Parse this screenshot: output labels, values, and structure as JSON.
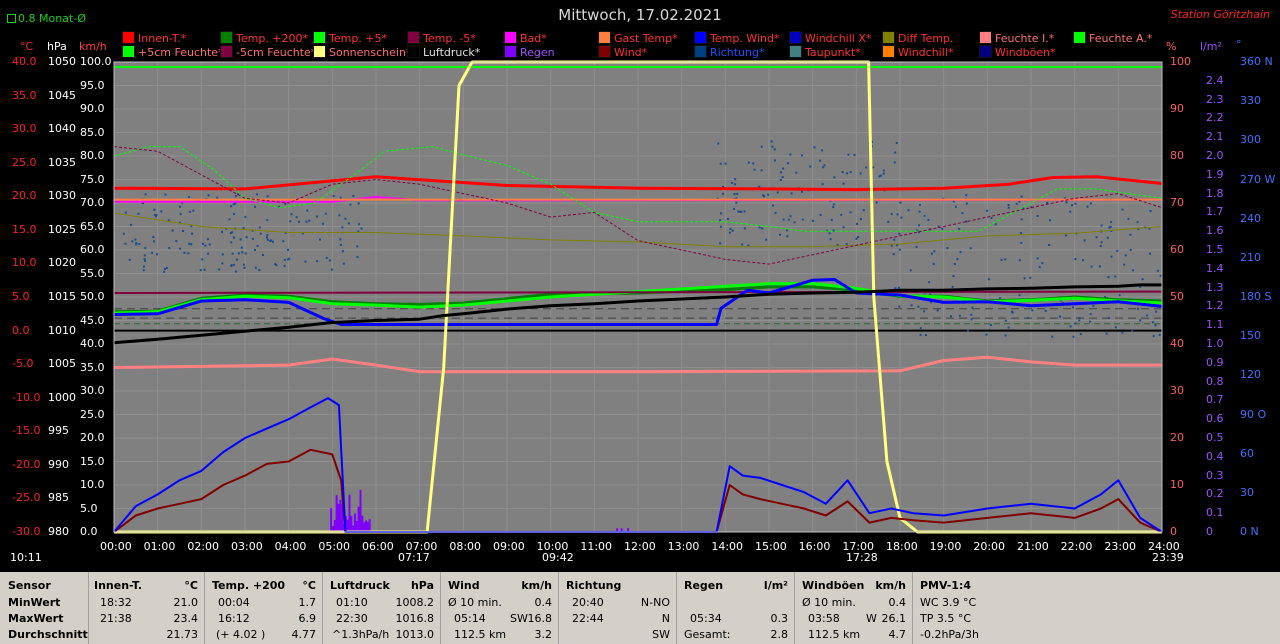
{
  "header": {
    "title": "Mittwoch, 17.02.2021",
    "station": "Station Göritzhain",
    "monat": "0.8 Monat-Ø",
    "clock": "10:11"
  },
  "legend": [
    {
      "label": "Innen-T.*",
      "color": "#ff0000",
      "text_color": "#ff3030"
    },
    {
      "label": "Temp. +200*",
      "color": "#008000",
      "text_color": "#ff3030"
    },
    {
      "label": "Temp. +5*",
      "color": "#00ff00",
      "text_color": "#ff3030"
    },
    {
      "label": "Temp. -5*",
      "color": "#800040",
      "text_color": "#ff3030"
    },
    {
      "label": "Bad*",
      "color": "#ff00ff",
      "text_color": "#ff3030"
    },
    {
      "label": "Gast Temp*",
      "color": "#ff8040",
      "text_color": "#ff3030"
    },
    {
      "label": "Temp. Wind*",
      "color": "#0000ff",
      "text_color": "#ff3030"
    },
    {
      "label": "Windchill X*",
      "color": "#0000c0",
      "text_color": "#ff3030"
    },
    {
      "label": "Diff Temp.",
      "color": "#808000",
      "text_color": "#ff3030"
    },
    {
      "label": "Feuchte I.*",
      "color": "#ff8080",
      "text_color": "#ff7070"
    },
    {
      "label": "Feuchte A.*",
      "color": "#00ff00",
      "text_color": "#ff7070"
    },
    {
      "label": "+5cm Feuchte*",
      "color": "#00ff00",
      "text_color": "#ff7070"
    },
    {
      "label": "-5cm Feuchte*",
      "color": "#800040",
      "text_color": "#ff7070"
    },
    {
      "label": "Sonnenschein*",
      "color": "#ffff80",
      "text_color": "#ff7070"
    },
    {
      "label": "Luftdruck*",
      "color": "#000000",
      "text_color": "#e0e0e0"
    },
    {
      "label": "Regen",
      "color": "#8000ff",
      "text_color": "#a050ff"
    },
    {
      "label": "Wind*",
      "color": "#800000",
      "text_color": "#ff3030"
    },
    {
      "label": "Richtung*",
      "color": "#004080",
      "text_color": "#2050ff"
    },
    {
      "label": "Taupunkt*",
      "color": "#408080",
      "text_color": "#ff3030"
    },
    {
      "label": "Windchill*",
      "color": "#ff8000",
      "text_color": "#ff3030"
    },
    {
      "label": "Windböen*",
      "color": "#000080",
      "text_color": "#ff3030"
    }
  ],
  "chart_data": {
    "type": "line",
    "x_ticks": [
      "00:00",
      "01:00",
      "02:00",
      "03:00",
      "04:00",
      "05:00",
      "06:00",
      "07:00",
      "08:00",
      "09:00",
      "10:00",
      "11:00",
      "12:00",
      "13:00",
      "14:00",
      "15:00",
      "16:00",
      "17:00",
      "18:00",
      "19:00",
      "20:00",
      "21:00",
      "22:00",
      "23:00",
      "24:00"
    ],
    "axes": {
      "temp": {
        "unit": "°C",
        "ticks": [
          "40.0",
          "35.0",
          "30.0",
          "25.0",
          "20.0",
          "15.0",
          "10.0",
          "5.0",
          "0.0",
          "-5.0",
          "-10.0",
          "-15.0",
          "-20.0",
          "-25.0",
          "-30.0"
        ],
        "ylim": [
          -30,
          40
        ]
      },
      "pressure": {
        "unit": "hPa",
        "ticks": [
          "1050",
          "1045",
          "1040",
          "1035",
          "1030",
          "1025",
          "1020",
          "1015",
          "1010",
          "1005",
          "1000",
          "995",
          "990",
          "985",
          "980"
        ],
        "ylim": [
          980,
          1050
        ]
      },
      "wind": {
        "unit": "km/h",
        "ticks": [
          "100.0",
          "95.0",
          "90.0",
          "85.0",
          "80.0",
          "75.0",
          "70.0",
          "65.0",
          "60.0",
          "55.0",
          "50.0",
          "45.0",
          "40.0",
          "35.0",
          "30.0",
          "25.0",
          "20.0",
          "15.0",
          "10.0",
          "5.0",
          "0.0"
        ],
        "ylim": [
          0,
          100
        ]
      },
      "humidity": {
        "unit": "%",
        "ticks": [
          "100",
          "90",
          "80",
          "70",
          "60",
          "50",
          "40",
          "30",
          "20",
          "10",
          "0"
        ],
        "ylim": [
          0,
          100
        ]
      },
      "rain": {
        "unit": "l/m²",
        "ticks": [
          "2.4",
          "2.3",
          "2.2",
          "2.1",
          "2.0",
          "1.9",
          "1.8",
          "1.7",
          "1.6",
          "1.5",
          "1.4",
          "1.3",
          "1.2",
          "1.1",
          "1.0",
          "0.9",
          "0.8",
          "0.7",
          "0.6",
          "0.5",
          "0.4",
          "0.3",
          "0.2",
          "0.1",
          "0"
        ],
        "ylim": [
          0,
          2.5
        ]
      },
      "direction": {
        "unit": "°",
        "ticks": [
          "360 N",
          "330",
          "300",
          "270 W",
          "240",
          "210",
          "180 S",
          "150",
          "120",
          "90 O",
          "60",
          "30",
          "0 N"
        ],
        "ylim": [
          0,
          360
        ]
      }
    },
    "markers": {
      "sunrise": "07:17",
      "sunset": "17:28",
      "rain_start": "09:42",
      "last": "23:39"
    },
    "series": [
      {
        "name": "Innen-T.*",
        "axis": "temp",
        "color": "#ff0000",
        "width": 3,
        "x": [
          0,
          3,
          4.5,
          6,
          9,
          12,
          15,
          17,
          19,
          20.5,
          21.5,
          22.5,
          24
        ],
        "y": [
          21.2,
          21.1,
          22.0,
          22.9,
          21.6,
          21.2,
          21.1,
          21.0,
          21.2,
          21.8,
          22.8,
          22.9,
          21.9
        ]
      },
      {
        "name": "Temp. +200*",
        "axis": "temp",
        "color": "#008000",
        "width": 3,
        "x": [
          0,
          1,
          2,
          3,
          4,
          5,
          6,
          7,
          8,
          10,
          12,
          14,
          15,
          16,
          17,
          18,
          19,
          20,
          21,
          22,
          23,
          24
        ],
        "y": [
          2.8,
          2.9,
          4.8,
          5.3,
          5.1,
          4.3,
          4.0,
          3.9,
          4.1,
          5.4,
          5.6,
          6.1,
          6.5,
          6.5,
          6.0,
          5.1,
          5.1,
          4.4,
          4.6,
          5.0,
          4.6,
          4.4
        ]
      },
      {
        "name": "Temp. +5*",
        "axis": "temp",
        "color": "#00ff00",
        "width": 3,
        "x": [
          0,
          1,
          2,
          3,
          4,
          5,
          6,
          7,
          8,
          10,
          12,
          14,
          15,
          16,
          17,
          18,
          19,
          20,
          21,
          22,
          23,
          24
        ],
        "y": [
          2.6,
          2.8,
          4.6,
          5.1,
          4.9,
          4.0,
          3.8,
          3.5,
          3.8,
          5.0,
          5.8,
          6.6,
          7.0,
          7.0,
          6.3,
          5.2,
          5.0,
          4.3,
          4.5,
          4.8,
          4.4,
          4.1
        ]
      },
      {
        "name": "Temp. -5*",
        "axis": "temp",
        "color": "#800040",
        "width": 2,
        "x": [
          0,
          24
        ],
        "y": [
          5.6,
          5.8
        ]
      },
      {
        "name": "Bad*",
        "axis": "temp",
        "color": "#ff00ff",
        "width": 2,
        "x": [
          0,
          5,
          6,
          7,
          24
        ],
        "y": [
          19.2,
          19.2,
          19.9,
          19.4,
          19.5
        ]
      },
      {
        "name": "Gast Temp*",
        "axis": "temp",
        "color": "#ff8040",
        "width": 2,
        "x": [
          0,
          24
        ],
        "y": [
          19.5,
          19.5
        ]
      },
      {
        "name": "Temp. Wind*",
        "axis": "temp",
        "color": "#0000ff",
        "width": 3,
        "x": [
          0,
          1,
          2,
          3,
          4,
          4.8,
          5.2,
          6,
          9,
          12,
          13.8,
          13.9,
          14.5,
          15,
          16,
          16.5,
          17,
          18,
          19,
          20,
          21,
          22,
          23,
          24
        ],
        "y": [
          2.4,
          2.5,
          4.4,
          4.6,
          4.2,
          1.8,
          0.9,
          0.9,
          0.9,
          0.9,
          0.9,
          3.3,
          6.0,
          5.6,
          7.5,
          7.6,
          5.6,
          5.3,
          4.2,
          4.3,
          3.7,
          4.0,
          4.3,
          3.6
        ]
      },
      {
        "name": "Diff Temp.",
        "axis": "temp",
        "color": "#808000",
        "width": 1,
        "x": [
          0,
          2,
          4,
          6,
          8,
          10,
          12,
          14,
          16,
          18,
          20,
          22,
          24
        ],
        "y": [
          17.5,
          15.5,
          14.6,
          14.6,
          14.1,
          13.5,
          13.2,
          12.5,
          12.5,
          12.9,
          14.1,
          14.5,
          15.5
        ]
      },
      {
        "name": "Feuchte I.*",
        "axis": "humidity",
        "color": "#ff8080",
        "width": 3,
        "x": [
          0,
          4,
          5,
          6,
          7,
          12,
          18,
          19,
          20,
          21,
          22,
          24
        ],
        "y": [
          35.0,
          35.5,
          36.8,
          35.5,
          34.1,
          34.1,
          34.3,
          36.5,
          37.2,
          36.2,
          35.5,
          35.5
        ]
      },
      {
        "name": "+5cm Feuchte*",
        "axis": "humidity",
        "color": "#00ff00",
        "width": 1,
        "dash": true,
        "x": [
          0,
          0.8,
          1.5,
          2.3,
          3,
          3.8,
          4.6,
          5.5,
          6.2,
          7.3,
          8.1,
          9,
          10,
          11,
          12,
          13,
          14,
          15,
          15.8,
          16.8,
          17.8,
          18.8,
          19.8,
          20.8,
          21.6,
          22.5,
          23.2,
          24
        ],
        "y": [
          80,
          82,
          82,
          77,
          71,
          69,
          70,
          76,
          81,
          82,
          80,
          78,
          74,
          68,
          66,
          66,
          66,
          65,
          64,
          64,
          64,
          64,
          64,
          69,
          73,
          73,
          72,
          71
        ]
      },
      {
        "name": "-5cm Feuchte*",
        "axis": "humidity",
        "color": "#800040",
        "width": 1,
        "dash": true,
        "x": [
          0,
          1,
          2,
          3,
          4,
          5,
          6,
          7,
          8,
          9,
          10,
          11,
          12,
          13,
          14,
          15,
          16,
          17,
          18,
          19,
          20,
          21,
          22,
          23,
          24
        ],
        "y": [
          82,
          81,
          76,
          71,
          70,
          74,
          75,
          74,
          72,
          70,
          67,
          68,
          62,
          60,
          58,
          57,
          59,
          61,
          63,
          65,
          67,
          69,
          71,
          72,
          69
        ]
      },
      {
        "name": "Sonnenschein*",
        "axis": "wind",
        "color": "#ffff80",
        "width": 3,
        "x": [
          0,
          7.17,
          7.55,
          7.9,
          8.2,
          17.28,
          17.4,
          17.7,
          18.0,
          18.4,
          24
        ],
        "y": [
          0,
          0,
          35,
          95,
          100,
          100,
          50,
          15,
          3,
          0,
          0
        ]
      },
      {
        "name": "Luftdruck*",
        "axis": "pressure",
        "color": "#000000",
        "width": 3,
        "x": [
          0,
          1,
          2,
          3,
          4,
          5,
          6,
          7,
          7.5,
          8,
          9,
          10,
          11,
          12,
          13,
          14,
          15,
          16,
          17,
          18,
          19,
          20,
          21,
          22,
          23,
          23.5,
          24
        ],
        "y": [
          1008.2,
          1008.7,
          1009.3,
          1009.9,
          1010.5,
          1011.2,
          1011.5,
          1011.7,
          1012.2,
          1012.5,
          1013.2,
          1013.7,
          1014.0,
          1014.4,
          1014.7,
          1015.0,
          1015.4,
          1015.6,
          1015.7,
          1016.0,
          1016.0,
          1016.2,
          1016.3,
          1016.5,
          1016.6,
          1016.8,
          1016.8
        ]
      },
      {
        "name": "Wind*",
        "axis": "wind",
        "color": "#800000",
        "width": 2,
        "x": [
          0,
          0.5,
          1,
          1.5,
          2,
          2.5,
          3,
          3.5,
          4,
          4.5,
          5,
          5.2,
          5.3,
          13.8,
          14.1,
          14.4,
          14.8,
          15.3,
          15.8,
          16.3,
          16.8,
          17.3,
          17.8,
          18.3,
          19,
          20,
          21,
          22,
          22.6,
          23,
          23.5,
          24
        ],
        "y": [
          0,
          3.5,
          5,
          6,
          7,
          10,
          12,
          14.5,
          15,
          17.5,
          16.5,
          11,
          0,
          0,
          10,
          8,
          7,
          6,
          5,
          3.5,
          6.5,
          2,
          3,
          2.5,
          2,
          3,
          4,
          3,
          5,
          7,
          2,
          0
        ]
      },
      {
        "name": "Windböen*",
        "axis": "wind",
        "color": "#0000ff",
        "width": 2,
        "x": [
          0,
          0.5,
          1,
          1.5,
          2,
          2.5,
          3,
          3.5,
          4,
          4.5,
          4.9,
          5.15,
          5.3,
          13.8,
          14.1,
          14.4,
          14.8,
          15.3,
          15.8,
          16.3,
          16.8,
          17.3,
          17.8,
          18.3,
          19,
          20,
          21,
          22,
          22.6,
          23,
          23.5,
          24
        ],
        "y": [
          0,
          5.5,
          8,
          11,
          13,
          17,
          20,
          22,
          24,
          26.5,
          28.5,
          27,
          0,
          0,
          14,
          12,
          11.5,
          10,
          8.5,
          6,
          11,
          4,
          5,
          4,
          3.5,
          5,
          6,
          5,
          8,
          11,
          3,
          0
        ]
      }
    ],
    "direction_points": "scattered blue dots 100–300°",
    "rain_bars": {
      "x_range": [
        "04:55",
        "05:50"
      ],
      "max": 0.23
    }
  },
  "stats": {
    "row_labels": [
      "Sensor",
      "MinWert",
      "MaxWert",
      "Durchschnitt"
    ],
    "innen": {
      "h1": "Innen-T.",
      "h2": "°C",
      "r1a": "18:32",
      "r1b": "21.0",
      "r2a": "21:38",
      "r2b": "23.4",
      "r3b": "21.73"
    },
    "temp200": {
      "h1": "Temp. +200",
      "h2": "°C",
      "r1a": "00:04",
      "r1b": "1.7",
      "r2a": "16:12",
      "r2b": "6.9",
      "r3a": "(+ 4.02 )",
      "r3b": "4.77"
    },
    "luft": {
      "h1": "Luftdruck",
      "h2": "hPa",
      "r1a": "01:10",
      "r1b": "1008.2",
      "r2a": "22:30",
      "r2b": "1016.8",
      "r3a": "^1.3hPa/h",
      "r3b": "1013.0"
    },
    "wind": {
      "h1": "Wind",
      "h2": "km/h",
      "r1a": "Ø 10 min.",
      "r1b": "0.4",
      "r2a": "05:14",
      "r2m": "SW",
      "r2b": "16.8",
      "r3a": "112.5 km",
      "r3b": "3.2"
    },
    "richtung": {
      "h1": "Richtung",
      "r1a": "20:40",
      "r1b": "N-NO",
      "r2a": "22:44",
      "r2b": "N",
      "r3b": "SW"
    },
    "regen": {
      "h1": "Regen",
      "h2": "l/m²",
      "r2a": "05:34",
      "r2b": "0.3",
      "r3a": "Gesamt:",
      "r3b": "2.8"
    },
    "boeen": {
      "h1": "Windböen",
      "h2": "km/h",
      "r1a": "Ø 10 min.",
      "r1b": "0.4",
      "r2a": "03:58",
      "r2m": "W",
      "r2b": "26.1",
      "r3a": "112.5 km",
      "r3b": "4.7"
    },
    "pmv": {
      "h1": "PMV-1:4",
      "r1a": "WC 3.9 °C",
      "r2a": "TP 3.5 °C",
      "r3a": "-0.2hPa/3h"
    }
  }
}
